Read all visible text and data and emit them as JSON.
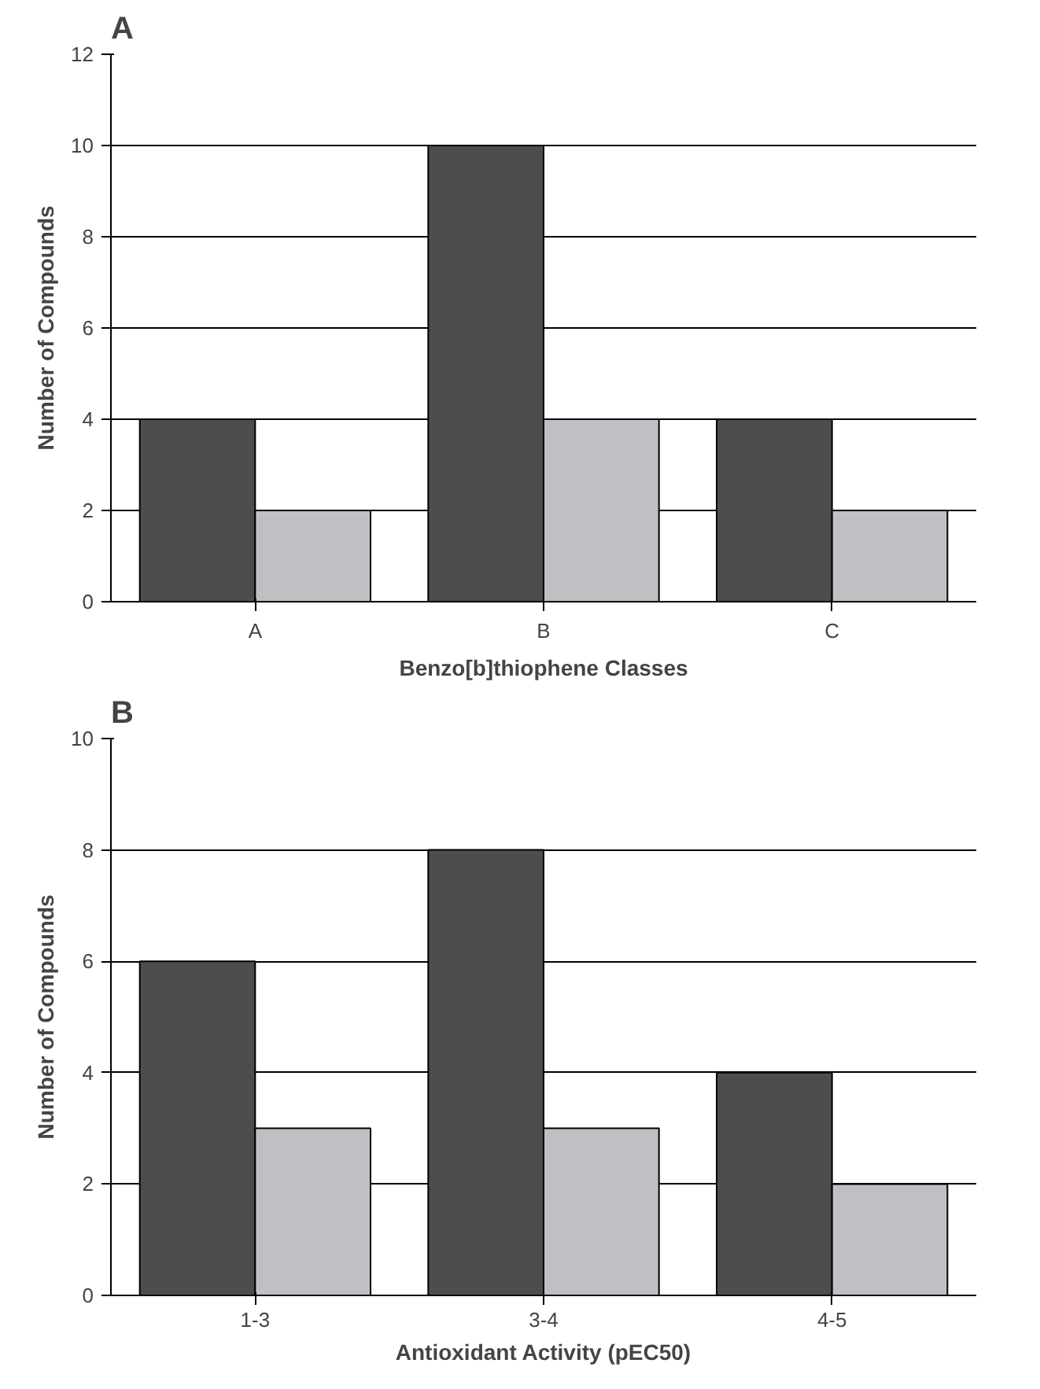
{
  "chart_data": [
    {
      "type": "bar",
      "title": "A",
      "xlabel": "Benzo[b]thiophene Classes",
      "ylabel": "Number of Compounds",
      "categories": [
        "A",
        "B",
        "C"
      ],
      "series": [
        {
          "color": "#4d4d4f",
          "values": [
            4,
            10,
            4
          ]
        },
        {
          "color": "#c0c0c4",
          "values": [
            2,
            4,
            2
          ]
        }
      ],
      "ylim": [
        0,
        12
      ],
      "yticks": [
        0,
        2,
        4,
        6,
        8,
        10,
        12
      ],
      "grid": "y"
    },
    {
      "type": "bar",
      "title": "B",
      "xlabel": "Antioxidant Activity (pEC50)",
      "ylabel": "Number of Compounds",
      "categories": [
        "1-3",
        "3-4",
        "4-5"
      ],
      "series": [
        {
          "color": "#4d4d4f",
          "values": [
            6,
            8,
            4
          ]
        },
        {
          "color": "#c0c0c4",
          "values": [
            3,
            3,
            2
          ]
        }
      ],
      "ylim": [
        0,
        10
      ],
      "yticks": [
        0,
        2,
        4,
        6,
        8,
        10
      ],
      "grid": "y"
    }
  ]
}
